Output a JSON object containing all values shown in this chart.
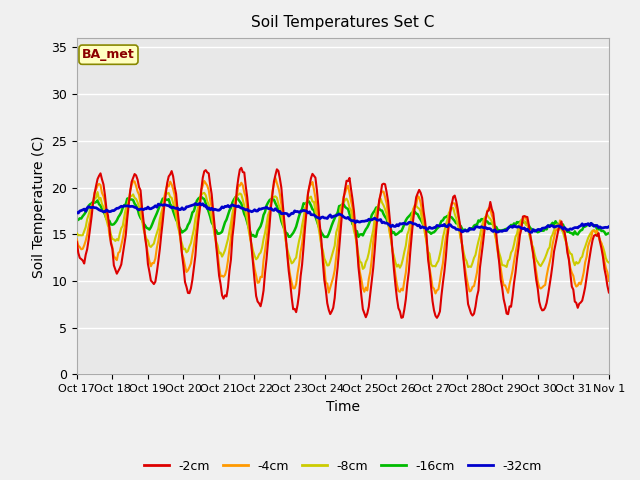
{
  "title": "Soil Temperatures Set C",
  "xlabel": "Time",
  "ylabel": "Soil Temperature (C)",
  "ylim": [
    0,
    36
  ],
  "yticks": [
    0,
    5,
    10,
    15,
    20,
    25,
    30,
    35
  ],
  "annotation": "BA_met",
  "annotation_color": "#8b0000",
  "annotation_bg": "#ffffc0",
  "annotation_edge": "#888800",
  "fig_bg": "#f0f0f0",
  "plot_bg": "#e8e8e8",
  "grid_color": "#ffffff",
  "series_colors": {
    "-2cm": "#dd0000",
    "-4cm": "#ff9900",
    "-8cm": "#cccc00",
    "-16cm": "#00bb00",
    "-32cm": "#0000cc"
  },
  "series_lw": {
    "-2cm": 1.5,
    "-4cm": 1.5,
    "-8cm": 1.5,
    "-16cm": 1.8,
    "-32cm": 2.0
  },
  "x_labels": [
    "Oct 17",
    "Oct 18",
    "Oct 19",
    "Oct 20",
    "Oct 21",
    "Oct 22",
    "Oct 23",
    "Oct 24",
    "Oct 25",
    "Oct 26",
    "Oct 27",
    "Oct 28",
    "Oct 29",
    "Oct 30",
    "Oct 31",
    "Nov 1"
  ],
  "n_days": 15,
  "pts_per_day": 24
}
